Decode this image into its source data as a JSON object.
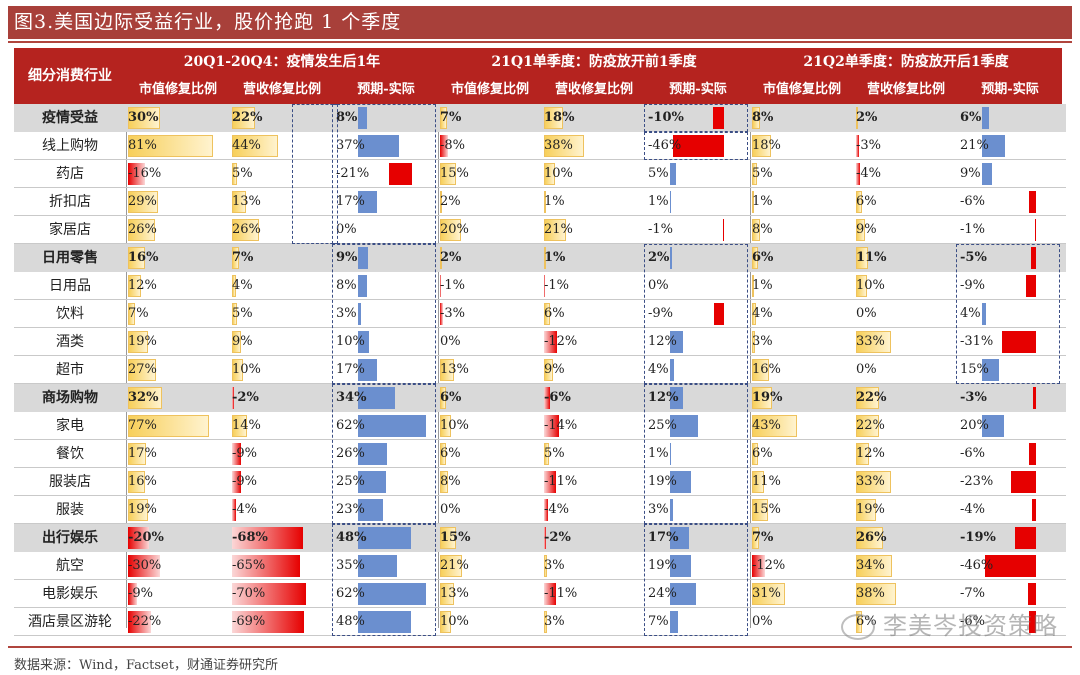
{
  "title": "图3.美国边际受益行业，股价抢跑 1 个季度",
  "source": "数据来源：Wind，Factset，财通证券研究所",
  "watermark": "李美岑投资策略",
  "colors": {
    "header_bg": "#b5231f",
    "title_bg": "#a8403a",
    "group_bg": "#d9d9d9",
    "bar_yellow": "#f7cf5a",
    "bar_red": "#e60000",
    "bar_blue": "#6b8fcf"
  },
  "chart_data": {
    "type": "table",
    "row_header": "细分消费行业",
    "periods": [
      {
        "label": "20Q1-20Q4：疫情发生后1年"
      },
      {
        "label": "21Q1单季度：防疫放开前1季度"
      },
      {
        "label": "21Q2单季度：防疫放开后1季度"
      }
    ],
    "metrics": [
      "市值修复比例",
      "营收修复比例",
      "预期-实际"
    ],
    "units": "%",
    "rows": [
      {
        "name": "疫情受益",
        "group": true,
        "values": [
          [
            30,
            22,
            8
          ],
          [
            7,
            18,
            -10
          ],
          [
            8,
            2,
            6
          ]
        ]
      },
      {
        "name": "线上购物",
        "group": false,
        "values": [
          [
            81,
            44,
            37
          ],
          [
            -8,
            38,
            -46
          ],
          [
            18,
            -3,
            21
          ]
        ]
      },
      {
        "name": "药店",
        "group": false,
        "values": [
          [
            -16,
            5,
            -21
          ],
          [
            15,
            10,
            5
          ],
          [
            5,
            -4,
            9
          ]
        ]
      },
      {
        "name": "折扣店",
        "group": false,
        "values": [
          [
            29,
            13,
            17
          ],
          [
            2,
            1,
            1
          ],
          [
            1,
            6,
            -6
          ]
        ]
      },
      {
        "name": "家居店",
        "group": false,
        "values": [
          [
            26,
            26,
            0
          ],
          [
            20,
            21,
            -1
          ],
          [
            8,
            9,
            -1
          ]
        ]
      },
      {
        "name": "日用零售",
        "group": true,
        "values": [
          [
            16,
            7,
            9
          ],
          [
            2,
            1,
            2
          ],
          [
            6,
            11,
            -5
          ]
        ]
      },
      {
        "name": "日用品",
        "group": false,
        "values": [
          [
            12,
            4,
            8
          ],
          [
            -1,
            -1,
            0
          ],
          [
            1,
            10,
            -9
          ]
        ]
      },
      {
        "name": "饮料",
        "group": false,
        "values": [
          [
            7,
            5,
            3
          ],
          [
            -3,
            6,
            -9
          ],
          [
            4,
            0,
            4
          ]
        ]
      },
      {
        "name": "酒类",
        "group": false,
        "values": [
          [
            19,
            9,
            10
          ],
          [
            0,
            -12,
            12
          ],
          [
            3,
            33,
            -31
          ]
        ]
      },
      {
        "name": "超市",
        "group": false,
        "values": [
          [
            27,
            10,
            17
          ],
          [
            13,
            9,
            4
          ],
          [
            16,
            0,
            15
          ]
        ]
      },
      {
        "name": "商场购物",
        "group": true,
        "values": [
          [
            32,
            -2,
            34
          ],
          [
            6,
            -6,
            12
          ],
          [
            19,
            22,
            -3
          ]
        ]
      },
      {
        "name": "家电",
        "group": false,
        "values": [
          [
            77,
            14,
            62
          ],
          [
            10,
            -14,
            25
          ],
          [
            43,
            22,
            20
          ]
        ]
      },
      {
        "name": "餐饮",
        "group": false,
        "values": [
          [
            17,
            -9,
            26
          ],
          [
            6,
            5,
            1
          ],
          [
            6,
            12,
            -6
          ]
        ]
      },
      {
        "name": "服装店",
        "group": false,
        "values": [
          [
            16,
            -9,
            25
          ],
          [
            8,
            -11,
            19
          ],
          [
            11,
            33,
            -23
          ]
        ]
      },
      {
        "name": "服装",
        "group": false,
        "values": [
          [
            19,
            -4,
            23
          ],
          [
            0,
            -4,
            3
          ],
          [
            15,
            19,
            -4
          ]
        ]
      },
      {
        "name": "出行娱乐",
        "group": true,
        "values": [
          [
            -20,
            -68,
            48
          ],
          [
            15,
            -2,
            17
          ],
          [
            7,
            26,
            -19
          ]
        ]
      },
      {
        "name": "航空",
        "group": false,
        "values": [
          [
            -30,
            -65,
            35
          ],
          [
            21,
            3,
            19
          ],
          [
            -12,
            34,
            -46
          ]
        ]
      },
      {
        "name": "电影娱乐",
        "group": false,
        "values": [
          [
            -9,
            -70,
            62
          ],
          [
            13,
            -11,
            24
          ],
          [
            31,
            38,
            -7
          ]
        ]
      },
      {
        "name": "酒店景区游轮",
        "group": false,
        "values": [
          [
            -22,
            -69,
            48
          ],
          [
            10,
            3,
            7
          ],
          [
            0,
            6,
            -6
          ]
        ]
      }
    ]
  }
}
